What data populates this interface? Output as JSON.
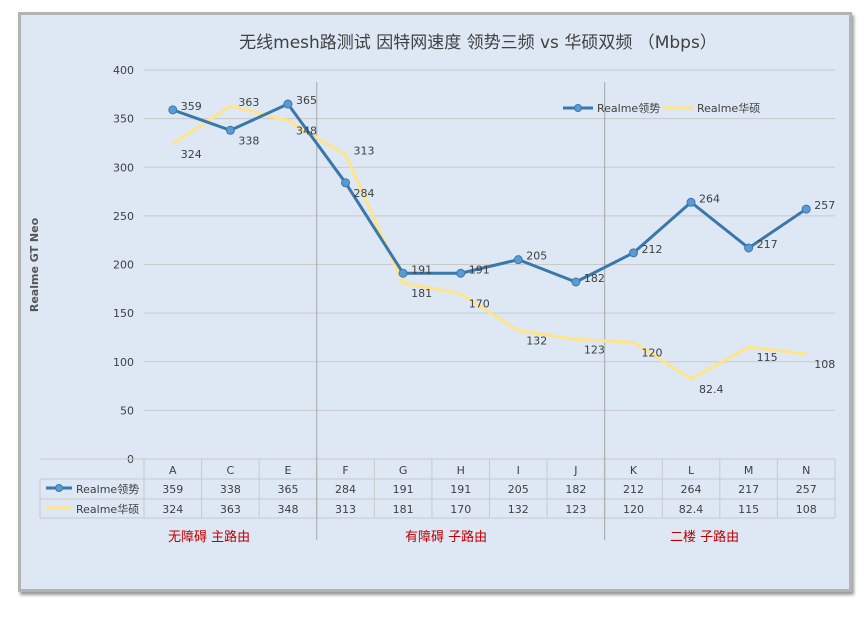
{
  "chart_data": {
    "type": "line",
    "title": "无线mesh路测试 因特网速度 领势三频 vs 华硕双频 （Mbps）",
    "ylabel": "Realme GT Neo",
    "ylim": [
      0,
      400
    ],
    "yticks": [
      0,
      50,
      100,
      150,
      200,
      250,
      300,
      350,
      400
    ],
    "grid": true,
    "legend_position": "top-right",
    "categories": [
      "A",
      "C",
      "E",
      "F",
      "G",
      "H",
      "I",
      "J",
      "K",
      "L",
      "M",
      "N"
    ],
    "series": [
      {
        "name": "Realme领势",
        "color": "#3a77aa",
        "values": [
          359,
          338,
          365,
          284,
          191,
          191,
          205,
          182,
          212,
          264,
          217,
          257
        ]
      },
      {
        "name": "Realme华硕",
        "color": "#ffe58a",
        "values": [
          324,
          363,
          348,
          313,
          181,
          170,
          132,
          123,
          120,
          82.4,
          115,
          108
        ]
      }
    ],
    "zones": [
      "无障碍  主路由",
      "有障碍   子路由",
      "二楼 子路由"
    ],
    "zone_color": "#c00000"
  }
}
